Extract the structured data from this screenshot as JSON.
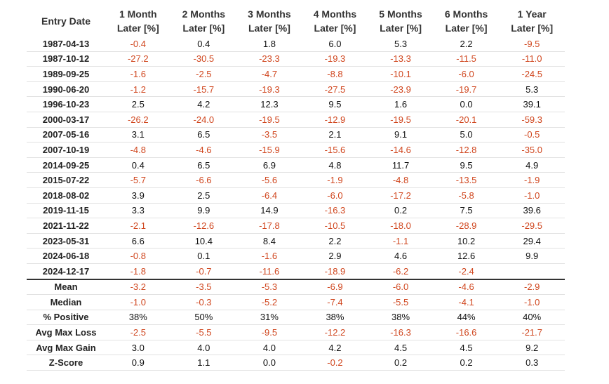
{
  "table": {
    "header": [
      [
        "Entry Date"
      ],
      [
        "1 Month",
        "Later [%]"
      ],
      [
        "2 Months",
        "Later [%]"
      ],
      [
        "3 Months",
        "Later [%]"
      ],
      [
        "4 Months",
        "Later [%]"
      ],
      [
        "5 Months",
        "Later [%]"
      ],
      [
        "6 Months",
        "Later [%]"
      ],
      [
        "1 Year",
        "Later [%]"
      ]
    ],
    "rows": [
      [
        "1987-04-13",
        "-0.4",
        "0.4",
        "1.8",
        "6.0",
        "5.3",
        "2.2",
        "-9.5"
      ],
      [
        "1987-10-12",
        "-27.2",
        "-30.5",
        "-23.3",
        "-19.3",
        "-13.3",
        "-11.5",
        "-11.0"
      ],
      [
        "1989-09-25",
        "-1.6",
        "-2.5",
        "-4.7",
        "-8.8",
        "-10.1",
        "-6.0",
        "-24.5"
      ],
      [
        "1990-06-20",
        "-1.2",
        "-15.7",
        "-19.3",
        "-27.5",
        "-23.9",
        "-19.7",
        "5.3"
      ],
      [
        "1996-10-23",
        "2.5",
        "4.2",
        "12.3",
        "9.5",
        "1.6",
        "0.0",
        "39.1"
      ],
      [
        "2000-03-17",
        "-26.2",
        "-24.0",
        "-19.5",
        "-12.9",
        "-19.5",
        "-20.1",
        "-59.3"
      ],
      [
        "2007-05-16",
        "3.1",
        "6.5",
        "-3.5",
        "2.1",
        "9.1",
        "5.0",
        "-0.5"
      ],
      [
        "2007-10-19",
        "-4.8",
        "-4.6",
        "-15.9",
        "-15.6",
        "-14.6",
        "-12.8",
        "-35.0"
      ],
      [
        "2014-09-25",
        "0.4",
        "6.5",
        "6.9",
        "4.8",
        "11.7",
        "9.5",
        "4.9"
      ],
      [
        "2015-07-22",
        "-5.7",
        "-6.6",
        "-5.6",
        "-1.9",
        "-4.8",
        "-13.5",
        "-1.9"
      ],
      [
        "2018-08-02",
        "3.9",
        "2.5",
        "-6.4",
        "-6.0",
        "-17.2",
        "-5.8",
        "-1.0"
      ],
      [
        "2019-11-15",
        "3.3",
        "9.9",
        "14.9",
        "-16.3",
        "0.2",
        "7.5",
        "39.6"
      ],
      [
        "2021-11-22",
        "-2.1",
        "-12.6",
        "-17.8",
        "-10.5",
        "-18.0",
        "-28.9",
        "-29.5"
      ],
      [
        "2023-05-31",
        "6.6",
        "10.4",
        "8.4",
        "2.2",
        "-1.1",
        "10.2",
        "29.4"
      ],
      [
        "2024-06-18",
        "-0.8",
        "0.1",
        "-1.6",
        "2.9",
        "4.6",
        "12.6",
        "9.9"
      ],
      [
        "2024-12-17",
        "-1.8",
        "-0.7",
        "-11.6",
        "-18.9",
        "-6.2",
        "-2.4",
        null
      ]
    ],
    "summary": [
      [
        "Mean",
        "-3.2",
        "-3.5",
        "-5.3",
        "-6.9",
        "-6.0",
        "-4.6",
        "-2.9"
      ],
      [
        "Median",
        "-1.0",
        "-0.3",
        "-5.2",
        "-7.4",
        "-5.5",
        "-4.1",
        "-1.0"
      ],
      [
        "% Positive",
        "38%",
        "50%",
        "31%",
        "38%",
        "38%",
        "44%",
        "40%"
      ],
      [
        "Avg Max Loss",
        "-2.5",
        "-5.5",
        "-9.5",
        "-12.2",
        "-16.3",
        "-16.6",
        "-21.7"
      ],
      [
        "Avg Max Gain",
        "3.0",
        "4.0",
        "4.0",
        "4.2",
        "4.5",
        "4.5",
        "9.2"
      ],
      [
        "Z-Score",
        "0.9",
        "1.1",
        "0.0",
        "-0.2",
        "0.2",
        "0.2",
        "0.3"
      ]
    ]
  }
}
